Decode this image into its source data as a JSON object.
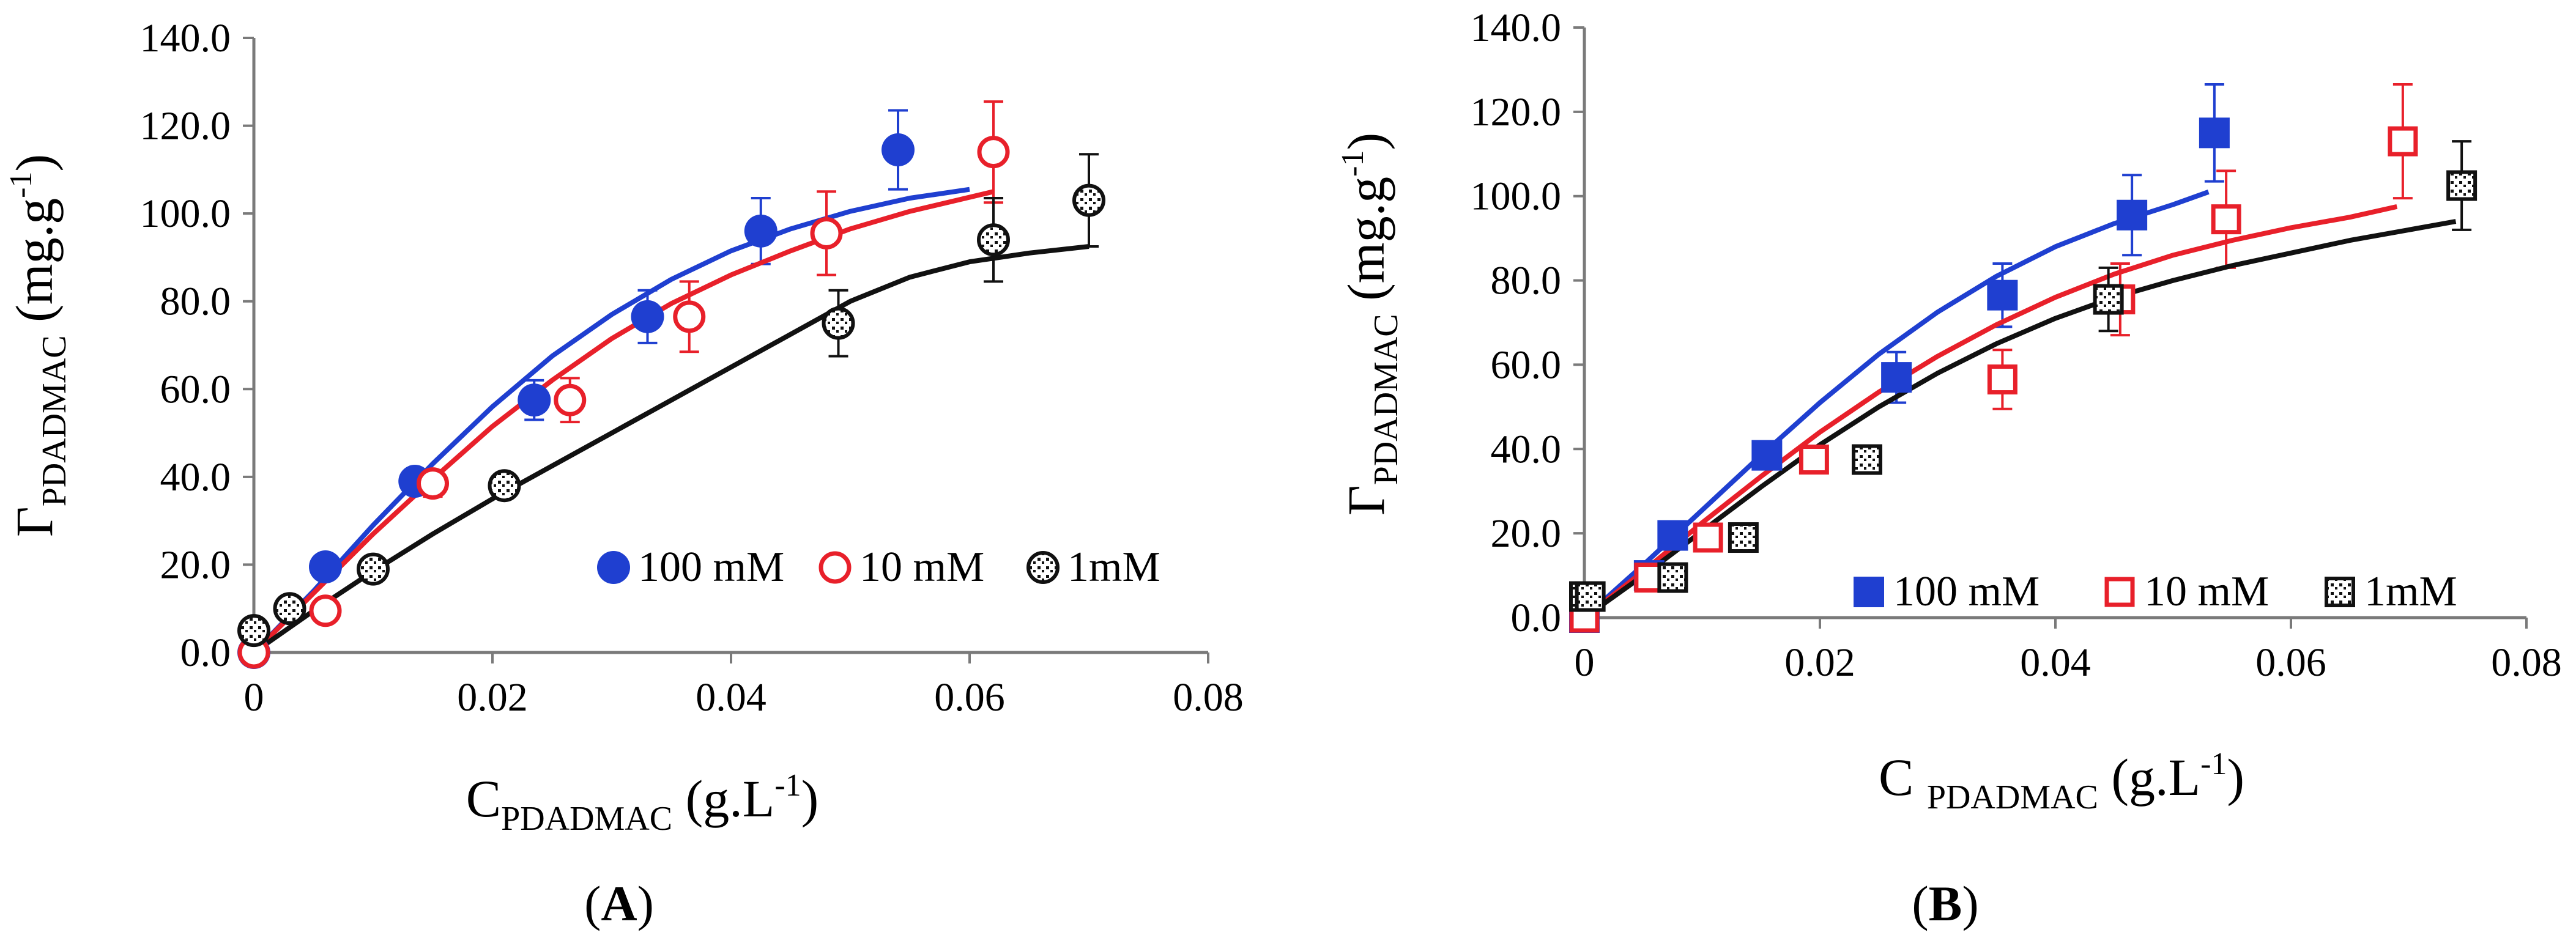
{
  "chart_data": [
    {
      "id": "A",
      "type": "scatter",
      "caption_letter": "A",
      "xlim": [
        0,
        0.08
      ],
      "ylim": [
        0,
        140
      ],
      "xticks": [
        "0",
        "0.02",
        "0.04",
        "0.06",
        "0.08"
      ],
      "xtick_values": [
        0,
        0.02,
        0.04,
        0.06,
        0.08
      ],
      "yticks": [
        "0.0",
        "20.0",
        "40.0",
        "60.0",
        "80.0",
        "100.0",
        "120.0",
        "140.0"
      ],
      "ytick_values": [
        0,
        20,
        40,
        60,
        80,
        100,
        120,
        140
      ],
      "xlabel": {
        "main": "C",
        "sub": "PDADMAC",
        "unit": "(g.L",
        "sup": "-1",
        "close": ")"
      },
      "ylabel": {
        "main": "Γ",
        "sub": "PDADMAC",
        "unit": "(mg.g",
        "sup": "-1",
        "close": ")"
      },
      "legend": [
        "100 mM",
        "10 mM",
        "1mM"
      ],
      "series": [
        {
          "name": "100 mM",
          "color": "#1f3fd0",
          "marker": "filled-circle",
          "points": [
            [
              0,
              0
            ],
            [
              0.006,
              19.5
            ],
            [
              0.0135,
              39
            ],
            [
              0.0235,
              57.5
            ],
            [
              0.033,
              76.5
            ],
            [
              0.0425,
              96
            ],
            [
              0.054,
              114.5
            ]
          ],
          "errors": [
            0,
            0,
            2,
            4.5,
            6,
            7.5,
            9
          ],
          "fit": [
            [
              0,
              0
            ],
            [
              0.005,
              14
            ],
            [
              0.01,
              29
            ],
            [
              0.015,
              43
            ],
            [
              0.02,
              56
            ],
            [
              0.025,
              67.5
            ],
            [
              0.03,
              77
            ],
            [
              0.035,
              85
            ],
            [
              0.04,
              91.5
            ],
            [
              0.045,
              96.5
            ],
            [
              0.05,
              100.5
            ],
            [
              0.055,
              103.5
            ],
            [
              0.06,
              105.5
            ]
          ]
        },
        {
          "name": "10 mM",
          "color": "#e8202a",
          "marker": "open-circle",
          "points": [
            [
              0,
              0
            ],
            [
              0.006,
              9.5
            ],
            [
              0.015,
              38.5
            ],
            [
              0.0265,
              57.5
            ],
            [
              0.0365,
              76.5
            ],
            [
              0.048,
              95.5
            ],
            [
              0.062,
              114
            ]
          ],
          "errors": [
            0,
            0,
            3,
            5,
            8,
            9.5,
            11.5
          ],
          "fit": [
            [
              0,
              0
            ],
            [
              0.005,
              13.5
            ],
            [
              0.01,
              27
            ],
            [
              0.015,
              39.5
            ],
            [
              0.02,
              51.5
            ],
            [
              0.025,
              62
            ],
            [
              0.03,
              71.5
            ],
            [
              0.035,
              79.5
            ],
            [
              0.04,
              86
            ],
            [
              0.045,
              91.5
            ],
            [
              0.05,
              96.5
            ],
            [
              0.055,
              100.5
            ],
            [
              0.062,
              105
            ]
          ]
        },
        {
          "name": "1mM",
          "color": "#111111",
          "marker": "dotted-circle",
          "points": [
            [
              0,
              5
            ],
            [
              0.003,
              10
            ],
            [
              0.01,
              19
            ],
            [
              0.021,
              38
            ],
            [
              0.049,
              75
            ],
            [
              0.062,
              94
            ],
            [
              0.07,
              103
            ]
          ],
          "errors": [
            0,
            0,
            0,
            2.5,
            7.5,
            9.5,
            10.5
          ],
          "fit": [
            [
              0,
              0
            ],
            [
              0.005,
              9.5
            ],
            [
              0.01,
              18.5
            ],
            [
              0.015,
              27
            ],
            [
              0.02,
              35
            ],
            [
              0.025,
              42.5
            ],
            [
              0.03,
              50
            ],
            [
              0.035,
              57.5
            ],
            [
              0.04,
              65
            ],
            [
              0.045,
              72.5
            ],
            [
              0.05,
              80
            ],
            [
              0.055,
              85.5
            ],
            [
              0.06,
              89
            ],
            [
              0.065,
              91
            ],
            [
              0.07,
              92.5
            ]
          ]
        }
      ]
    },
    {
      "id": "B",
      "type": "scatter",
      "caption_letter": "B",
      "xlim": [
        0,
        0.08
      ],
      "ylim": [
        0,
        140
      ],
      "xticks": [
        "0",
        "0.02",
        "0.04",
        "0.06",
        "0.08"
      ],
      "xtick_values": [
        0,
        0.02,
        0.04,
        0.06,
        0.08
      ],
      "yticks": [
        "0.0",
        "20.0",
        "40.0",
        "60.0",
        "80.0",
        "100.0",
        "120.0",
        "140.0"
      ],
      "ytick_values": [
        0,
        20,
        40,
        60,
        80,
        100,
        120,
        140
      ],
      "xlabel": {
        "main": "C ",
        "sub": "PDADMAC",
        "unit": " (g.L",
        "sup": "-1",
        "close": ")"
      },
      "ylabel": {
        "main": "Γ",
        "sub": "PDADMAC",
        "unit": " (mg.g",
        "sup": "-1",
        "close": ")"
      },
      "legend": [
        "100 mM",
        "10 mM",
        "1mM"
      ],
      "series": [
        {
          "name": "100 mM",
          "color": "#1f3fd0",
          "marker": "filled-square",
          "points": [
            [
              0,
              0
            ],
            [
              0.0055,
              10
            ],
            [
              0.0075,
              19.5
            ],
            [
              0.0155,
              38.5
            ],
            [
              0.0265,
              57
            ],
            [
              0.0355,
              76.5
            ],
            [
              0.0465,
              95.5
            ],
            [
              0.0535,
              115
            ]
          ],
          "errors": [
            0,
            0,
            0,
            2.5,
            6,
            7.5,
            9.5,
            11.5
          ],
          "fit": [
            [
              0,
              0
            ],
            [
              0.005,
              12.5
            ],
            [
              0.01,
              25.5
            ],
            [
              0.015,
              38.5
            ],
            [
              0.02,
              51
            ],
            [
              0.025,
              62.5
            ],
            [
              0.03,
              72.5
            ],
            [
              0.035,
              81
            ],
            [
              0.04,
              88
            ],
            [
              0.045,
              93.5
            ],
            [
              0.05,
              98
            ],
            [
              0.053,
              101
            ]
          ]
        },
        {
          "name": "10 mM",
          "color": "#e8202a",
          "marker": "open-square",
          "points": [
            [
              0,
              0
            ],
            [
              0.0055,
              9.5
            ],
            [
              0.0105,
              19
            ],
            [
              0.0195,
              37.5
            ],
            [
              0.0355,
              56.5
            ],
            [
              0.0455,
              75.5
            ],
            [
              0.0545,
              94.5
            ],
            [
              0.0695,
              113
            ]
          ],
          "errors": [
            0,
            0,
            0,
            2.5,
            7,
            8.5,
            11.5,
            13.5
          ],
          "fit": [
            [
              0,
              0
            ],
            [
              0.005,
              11
            ],
            [
              0.01,
              22.5
            ],
            [
              0.015,
              33.5
            ],
            [
              0.02,
              44
            ],
            [
              0.025,
              53.5
            ],
            [
              0.03,
              62
            ],
            [
              0.035,
              69.5
            ],
            [
              0.04,
              76
            ],
            [
              0.045,
              81.5
            ],
            [
              0.05,
              86
            ],
            [
              0.055,
              89.5
            ],
            [
              0.06,
              92.5
            ],
            [
              0.065,
              95
            ],
            [
              0.069,
              97.5
            ]
          ]
        },
        {
          "name": "1mM",
          "color": "#111111",
          "marker": "dotted-square",
          "points": [
            [
              0,
              5
            ],
            [
              0.0005,
              5
            ],
            [
              0.0075,
              9.5
            ],
            [
              0.0135,
              19
            ],
            [
              0.024,
              37.5
            ],
            [
              0.0445,
              75.5
            ],
            [
              0.0745,
              102.5
            ]
          ],
          "errors": [
            0,
            0,
            0,
            0,
            0,
            7.5,
            10.5
          ],
          "fit": [
            [
              0,
              0
            ],
            [
              0.005,
              10
            ],
            [
              0.01,
              20.5
            ],
            [
              0.015,
              31
            ],
            [
              0.02,
              41
            ],
            [
              0.025,
              50
            ],
            [
              0.03,
              58
            ],
            [
              0.035,
              65
            ],
            [
              0.04,
              71
            ],
            [
              0.045,
              76
            ],
            [
              0.05,
              80
            ],
            [
              0.055,
              83.5
            ],
            [
              0.06,
              86.5
            ],
            [
              0.065,
              89.5
            ],
            [
              0.07,
              92
            ],
            [
              0.074,
              94
            ]
          ]
        }
      ]
    }
  ]
}
